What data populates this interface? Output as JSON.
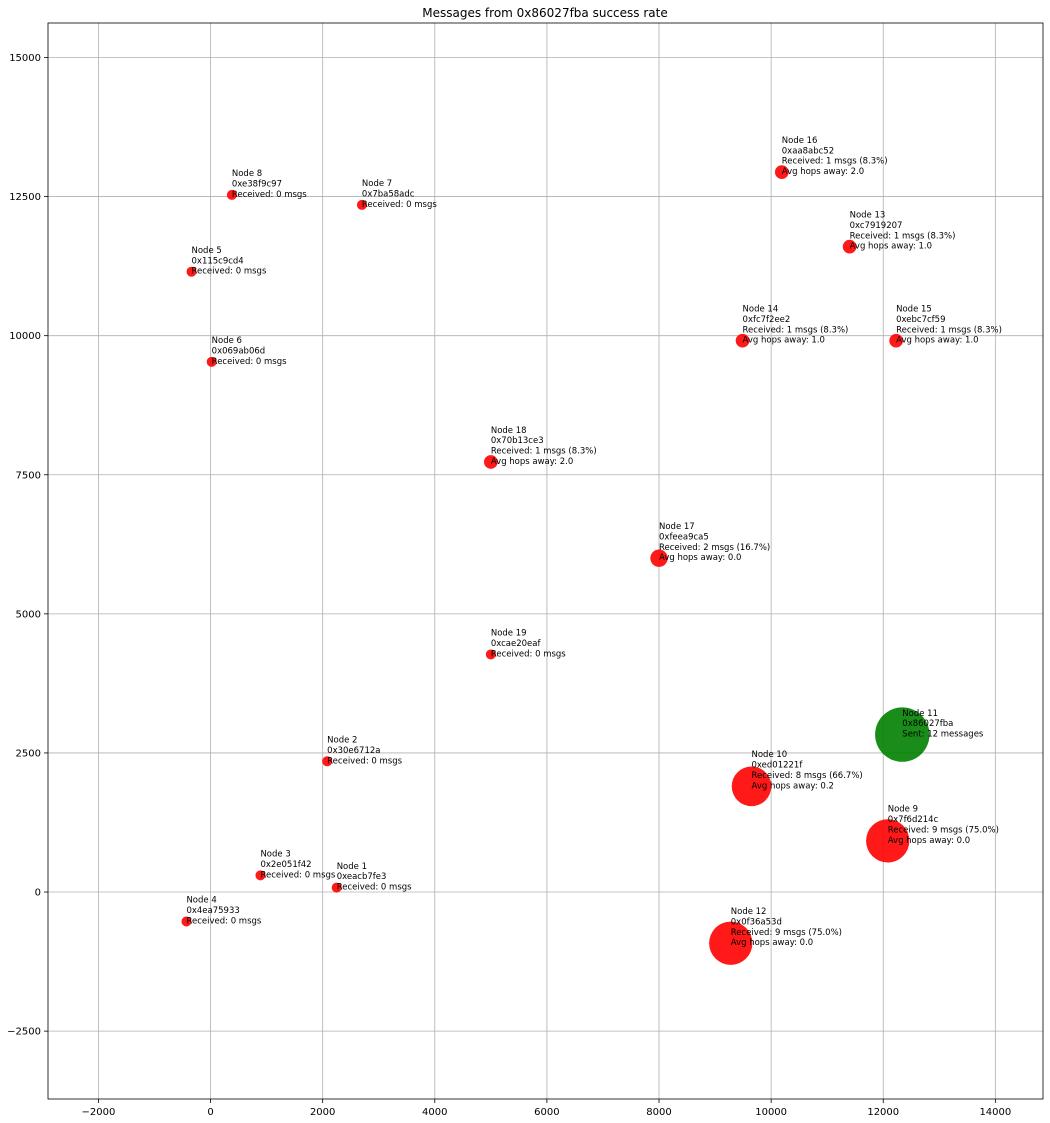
{
  "chart_data": {
    "type": "scatter",
    "title": "Messages from 0x86027fba success rate",
    "xlabel": "",
    "ylabel": "",
    "xlim": [
      -2900,
      14850
    ],
    "ylim": [
      -3720,
      15620
    ],
    "xticks": [
      -2000,
      0,
      2000,
      4000,
      6000,
      8000,
      10000,
      12000,
      14000
    ],
    "yticks": [
      -2500,
      0,
      2500,
      5000,
      7500,
      10000,
      12500,
      15000
    ],
    "grid": true,
    "colors": {
      "receiver": "#ff0000",
      "sender": "#008000",
      "grid": "#b0b0b0"
    },
    "points": [
      {
        "x": 2250,
        "y": 80,
        "size": 0,
        "role": "receiver",
        "label": [
          "Node 1",
          "0xeacb7fe3",
          "Received: 0 msgs"
        ]
      },
      {
        "x": 2080,
        "y": 2350,
        "size": 0,
        "role": "receiver",
        "label": [
          "Node 2",
          "0x30e6712a",
          "Received: 0 msgs"
        ]
      },
      {
        "x": 890,
        "y": 300,
        "size": 0,
        "role": "receiver",
        "label": [
          "Node 3",
          "0x2e051f42",
          "Received: 0 msgs"
        ]
      },
      {
        "x": -430,
        "y": -530,
        "size": 0,
        "role": "receiver",
        "label": [
          "Node 4",
          "0x4ea75933",
          "Received: 0 msgs"
        ]
      },
      {
        "x": -340,
        "y": 11150,
        "size": 0,
        "role": "receiver",
        "label": [
          "Node 5",
          "0x115c9cd4",
          "Received: 0 msgs"
        ]
      },
      {
        "x": 20,
        "y": 9530,
        "size": 0,
        "role": "receiver",
        "label": [
          "Node 6",
          "0x069ab06d",
          "Received: 0 msgs"
        ]
      },
      {
        "x": 2700,
        "y": 12350,
        "size": 0,
        "role": "receiver",
        "label": [
          "Node 7",
          "0x7ba58adc",
          "Received: 0 msgs"
        ]
      },
      {
        "x": 380,
        "y": 12530,
        "size": 0,
        "role": "receiver",
        "label": [
          "Node 8",
          "0xe38f9c97",
          "Received: 0 msgs"
        ]
      },
      {
        "x": 12080,
        "y": 920,
        "size": 9,
        "role": "receiver",
        "label": [
          "Node 9",
          "0x7f6d214c",
          "Received: 9 msgs (75.0%)",
          "Avg hops away: 0.0"
        ]
      },
      {
        "x": 9650,
        "y": 1900,
        "size": 8,
        "role": "receiver",
        "label": [
          "Node 10",
          "0xed01221f",
          "Received: 8 msgs (66.7%)",
          "Avg hops away: 0.2"
        ]
      },
      {
        "x": 12340,
        "y": 2830,
        "size": 12,
        "role": "sender",
        "label": [
          "Node 11",
          "0x86027fba",
          "Sent: 12 messages"
        ]
      },
      {
        "x": 9280,
        "y": -920,
        "size": 9,
        "role": "receiver",
        "label": [
          "Node 12",
          "0x0f36a53d",
          "Received: 9 msgs (75.0%)",
          "Avg hops away: 0.0"
        ]
      },
      {
        "x": 11400,
        "y": 11600,
        "size": 1,
        "role": "receiver",
        "label": [
          "Node 13",
          "0xc7919207",
          "Received: 1 msgs (8.3%)",
          "Avg hops away: 1.0"
        ]
      },
      {
        "x": 9490,
        "y": 9910,
        "size": 1,
        "role": "receiver",
        "label": [
          "Node 14",
          "0xfc7f2ee2",
          "Received: 1 msgs (8.3%)",
          "Avg hops away: 1.0"
        ]
      },
      {
        "x": 12230,
        "y": 9910,
        "size": 1,
        "role": "receiver",
        "label": [
          "Node 15",
          "0xebc7cf59",
          "Received: 1 msgs (8.3%)",
          "Avg hops away: 1.0"
        ]
      },
      {
        "x": 10190,
        "y": 12940,
        "size": 1,
        "role": "receiver",
        "label": [
          "Node 16",
          "0xaa8abc52",
          "Received: 1 msgs (8.3%)",
          "Avg hops away: 2.0"
        ]
      },
      {
        "x": 8000,
        "y": 6000,
        "size": 2,
        "role": "receiver",
        "label": [
          "Node 17",
          "0xfeea9ca5",
          "Received: 2 msgs (16.7%)",
          "Avg hops away: 0.0"
        ]
      },
      {
        "x": 5000,
        "y": 7730,
        "size": 1,
        "role": "receiver",
        "label": [
          "Node 18",
          "0x70b13ce3",
          "Received: 1 msgs (8.3%)",
          "Avg hops away: 2.0"
        ]
      },
      {
        "x": 5000,
        "y": 4270,
        "size": 0,
        "role": "receiver",
        "label": [
          "Node 19",
          "0xcae20eaf",
          "Received: 0 msgs"
        ]
      }
    ]
  }
}
